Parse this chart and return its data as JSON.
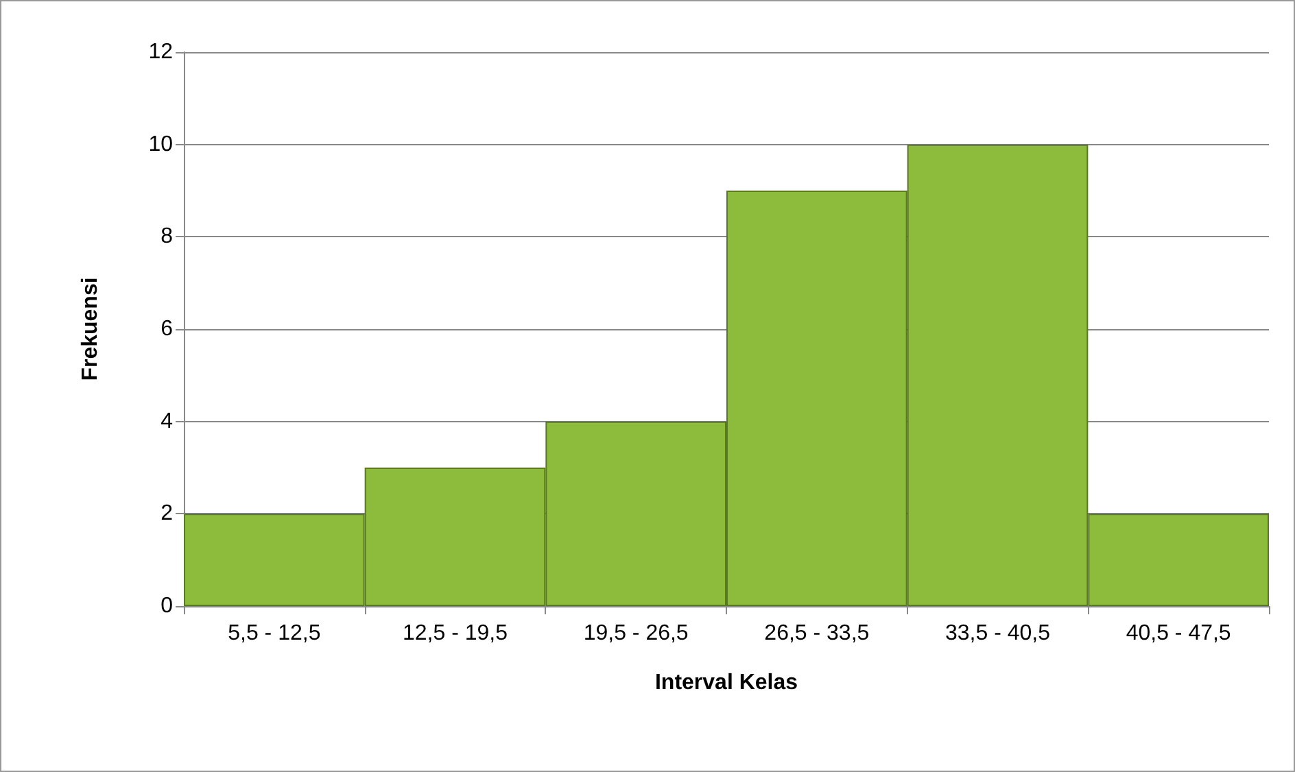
{
  "chart_data": {
    "type": "bar",
    "xlabel": "Interval Kelas",
    "ylabel": "Frekuensi",
    "categories": [
      "5,5 - 12,5",
      "12,5 - 19,5",
      "19,5 - 26,5",
      "26,5 - 33,5",
      "33,5 - 40,5",
      "40,5 - 47,5"
    ],
    "values": [
      2,
      3,
      4,
      9,
      10,
      2
    ],
    "color": "#8dbb3c",
    "ylim": [
      0,
      12
    ],
    "yticks": [
      0,
      2,
      4,
      6,
      8,
      10,
      12
    ],
    "grid": "y"
  }
}
